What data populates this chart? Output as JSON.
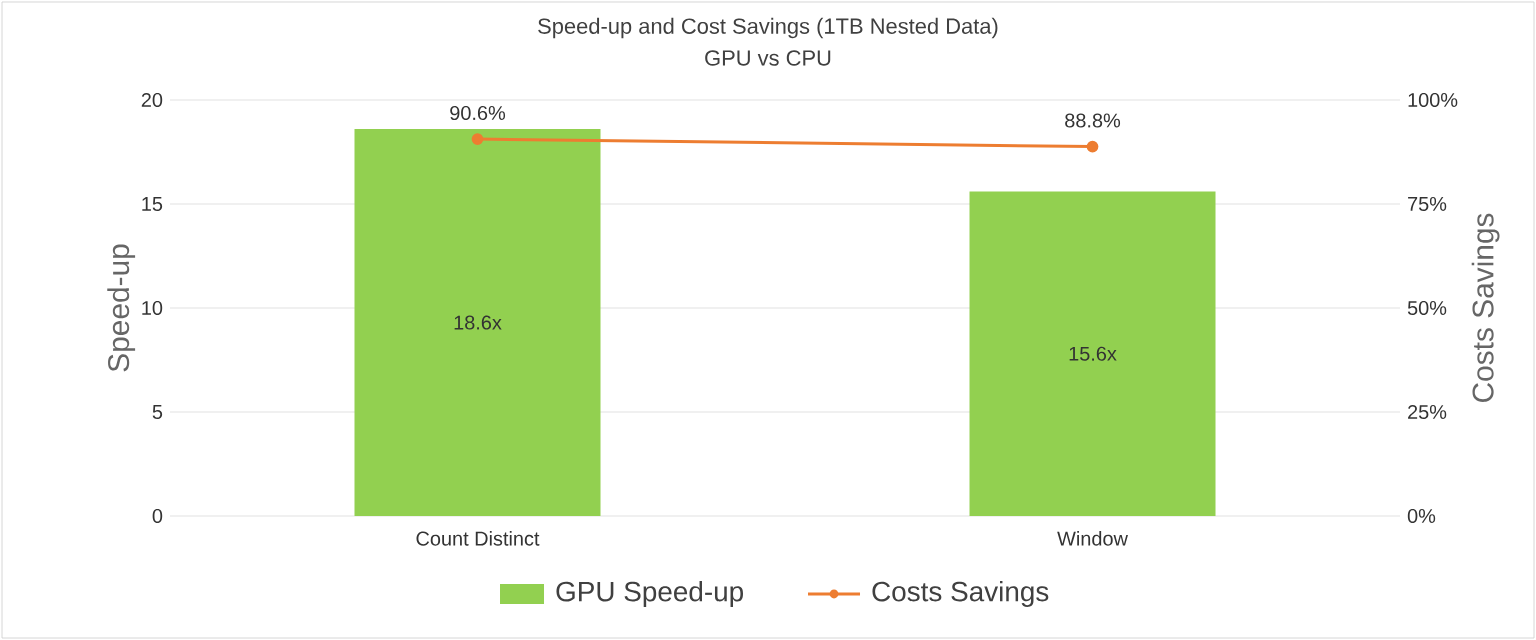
{
  "chart_data": {
    "type": "bar",
    "title": "Speed-up and Cost Savings (1TB Nested Data)",
    "subtitle": "GPU vs CPU",
    "categories": [
      "Count Distinct",
      "Window"
    ],
    "series": [
      {
        "name": "GPU Speed-up",
        "color": "#92d050",
        "values": [
          18.6,
          15.6
        ],
        "value_labels": [
          "18.6x",
          "15.6x"
        ]
      },
      {
        "name": "Costs Savings",
        "type": "line",
        "axis": "y2",
        "color": "#ed7d31",
        "values": [
          90.6,
          88.8
        ],
        "value_labels": [
          "90.6%",
          "88.8%"
        ]
      }
    ],
    "ylabel": "Speed-up",
    "y2label": "Costs  Savings",
    "ylim": [
      0,
      20
    ],
    "yticks": [
      0,
      5,
      10,
      15,
      20
    ],
    "y2lim": [
      0,
      100
    ],
    "y2ticks": [
      {
        "value": 0,
        "label": "0%"
      },
      {
        "value": 25,
        "label": "25%"
      },
      {
        "value": 50,
        "label": "50%"
      },
      {
        "value": 75,
        "label": "75%"
      },
      {
        "value": 100,
        "label": "100%"
      }
    ],
    "grid": "y",
    "legend": "bottom",
    "marker": "circle"
  }
}
